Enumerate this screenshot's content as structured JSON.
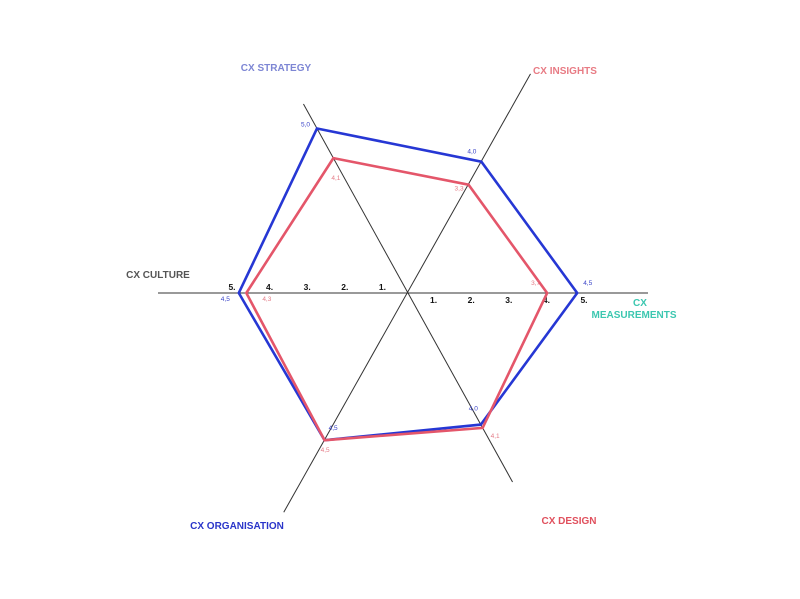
{
  "chart_data": {
    "type": "radar",
    "axes": [
      {
        "name": "CX STRATEGY",
        "color": "#7d86d4"
      },
      {
        "name": "CX INSIGHTS",
        "color": "#e87b84"
      },
      {
        "name": "CX MEASUREMENTS",
        "color": "#3cc7b0"
      },
      {
        "name": "CX DESIGN",
        "color": "#e0505d"
      },
      {
        "name": "CX ORGANISATION",
        "color": "#2a35c9"
      },
      {
        "name": "CX CULTURE",
        "color": "#555555"
      }
    ],
    "ticks": [
      "1.",
      "2.",
      "3.",
      "4.",
      "5."
    ],
    "series": [
      {
        "color": "#2637d4",
        "values": [
          5.0,
          4.0,
          4.5,
          4.0,
          4.5,
          4.5
        ],
        "labels": [
          "5,0",
          "4,0",
          "4,5",
          "4,0",
          "4,5",
          "4,5"
        ]
      },
      {
        "color": "#e4566a",
        "values": [
          4.1,
          3.3,
          3.7,
          4.1,
          4.5,
          4.3
        ],
        "labels": [
          "4,1",
          "3,3",
          "3,7",
          "4,1",
          "4,5",
          "4,3"
        ]
      }
    ],
    "range": [
      0,
      5
    ]
  }
}
